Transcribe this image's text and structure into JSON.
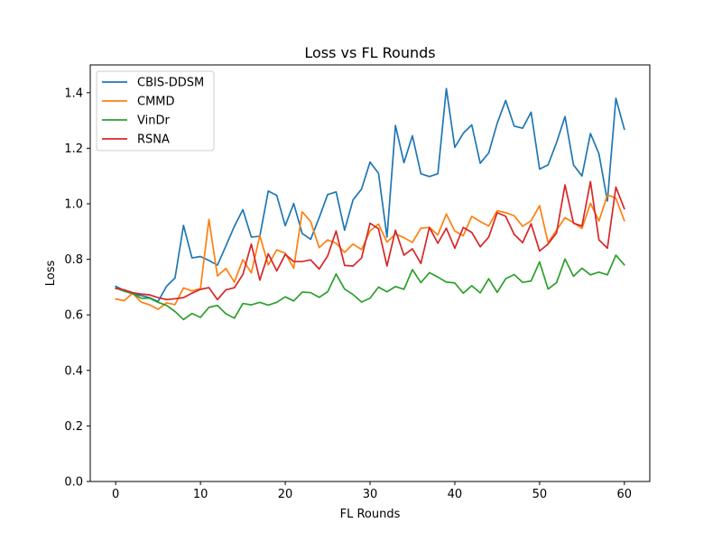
{
  "chart_data": {
    "type": "line",
    "title": "Loss vs FL Rounds",
    "xlabel": "FL Rounds",
    "ylabel": "Loss",
    "xlim": [
      -3,
      63
    ],
    "ylim": [
      0,
      1.5
    ],
    "xticks": [
      0,
      10,
      20,
      30,
      40,
      50,
      60
    ],
    "yticks": [
      0.0,
      0.2,
      0.4,
      0.6,
      0.8,
      1.0,
      1.2,
      1.4
    ],
    "xtick_labels": [
      "0",
      "10",
      "20",
      "30",
      "40",
      "50",
      "60"
    ],
    "ytick_labels": [
      "0.0",
      "0.2",
      "0.4",
      "0.6",
      "0.8",
      "1.0",
      "1.2",
      "1.4"
    ],
    "grid": false,
    "legend_position": "top-left",
    "x": [
      0,
      1,
      2,
      3,
      4,
      5,
      6,
      7,
      8,
      9,
      10,
      11,
      12,
      13,
      14,
      15,
      16,
      17,
      18,
      19,
      20,
      21,
      22,
      23,
      24,
      25,
      26,
      27,
      28,
      29,
      30,
      31,
      32,
      33,
      34,
      35,
      36,
      37,
      38,
      39,
      40,
      41,
      42,
      43,
      44,
      45,
      46,
      47,
      48,
      49,
      50,
      51,
      52,
      53,
      54,
      55,
      56,
      57,
      58,
      59,
      60
    ],
    "series": [
      {
        "name": "CBIS-DDSM",
        "color": "#1f77b4",
        "values": [
          0.703,
          0.688,
          0.675,
          0.67,
          0.662,
          0.648,
          0.703,
          0.733,
          0.922,
          0.805,
          0.81,
          0.796,
          0.779,
          0.848,
          0.919,
          0.979,
          0.88,
          0.883,
          1.046,
          1.03,
          0.921,
          1.001,
          0.893,
          0.872,
          0.95,
          1.033,
          1.043,
          0.905,
          1.014,
          1.053,
          1.15,
          1.11,
          0.88,
          1.282,
          1.148,
          1.245,
          1.108,
          1.098,
          1.108,
          1.415,
          1.203,
          1.254,
          1.284,
          1.146,
          1.183,
          1.29,
          1.372,
          1.28,
          1.272,
          1.33,
          1.125,
          1.14,
          1.22,
          1.314,
          1.14,
          1.1,
          1.253,
          1.18,
          1.01,
          1.38,
          1.268
        ]
      },
      {
        "name": "CMMD",
        "color": "#ff7f0e",
        "values": [
          0.657,
          0.651,
          0.678,
          0.646,
          0.636,
          0.62,
          0.643,
          0.637,
          0.697,
          0.686,
          0.695,
          0.944,
          0.74,
          0.767,
          0.718,
          0.799,
          0.751,
          0.885,
          0.78,
          0.834,
          0.822,
          0.768,
          0.971,
          0.936,
          0.842,
          0.87,
          0.858,
          0.825,
          0.855,
          0.835,
          0.902,
          0.927,
          0.862,
          0.891,
          0.878,
          0.861,
          0.912,
          0.915,
          0.888,
          0.963,
          0.902,
          0.885,
          0.955,
          0.936,
          0.92,
          0.975,
          0.968,
          0.957,
          0.919,
          0.939,
          0.993,
          0.86,
          0.905,
          0.95,
          0.932,
          0.911,
          1.002,
          0.938,
          1.032,
          1.02,
          0.939
        ]
      },
      {
        "name": "VinDr",
        "color": "#2ca02c",
        "values": [
          0.697,
          0.685,
          0.677,
          0.66,
          0.66,
          0.645,
          0.634,
          0.612,
          0.583,
          0.605,
          0.591,
          0.627,
          0.634,
          0.604,
          0.588,
          0.641,
          0.636,
          0.645,
          0.635,
          0.645,
          0.665,
          0.65,
          0.682,
          0.68,
          0.663,
          0.683,
          0.747,
          0.693,
          0.673,
          0.646,
          0.66,
          0.7,
          0.683,
          0.702,
          0.692,
          0.763,
          0.716,
          0.752,
          0.736,
          0.718,
          0.715,
          0.678,
          0.705,
          0.679,
          0.73,
          0.681,
          0.73,
          0.745,
          0.717,
          0.722,
          0.791,
          0.693,
          0.716,
          0.801,
          0.739,
          0.768,
          0.744,
          0.754,
          0.744,
          0.815,
          0.78
        ]
      },
      {
        "name": "RSNA",
        "color": "#d62728",
        "values": [
          0.695,
          0.69,
          0.68,
          0.675,
          0.672,
          0.662,
          0.655,
          0.658,
          0.662,
          0.678,
          0.692,
          0.698,
          0.655,
          0.69,
          0.698,
          0.745,
          0.855,
          0.725,
          0.82,
          0.758,
          0.818,
          0.792,
          0.792,
          0.798,
          0.765,
          0.812,
          0.902,
          0.778,
          0.776,
          0.805,
          0.93,
          0.91,
          0.776,
          0.905,
          0.815,
          0.838,
          0.785,
          0.915,
          0.858,
          0.912,
          0.84,
          0.915,
          0.897,
          0.845,
          0.88,
          0.968,
          0.955,
          0.89,
          0.86,
          0.928,
          0.83,
          0.855,
          0.895,
          1.068,
          0.93,
          0.92,
          1.08,
          0.87,
          0.84,
          1.06,
          0.982
        ]
      }
    ]
  }
}
